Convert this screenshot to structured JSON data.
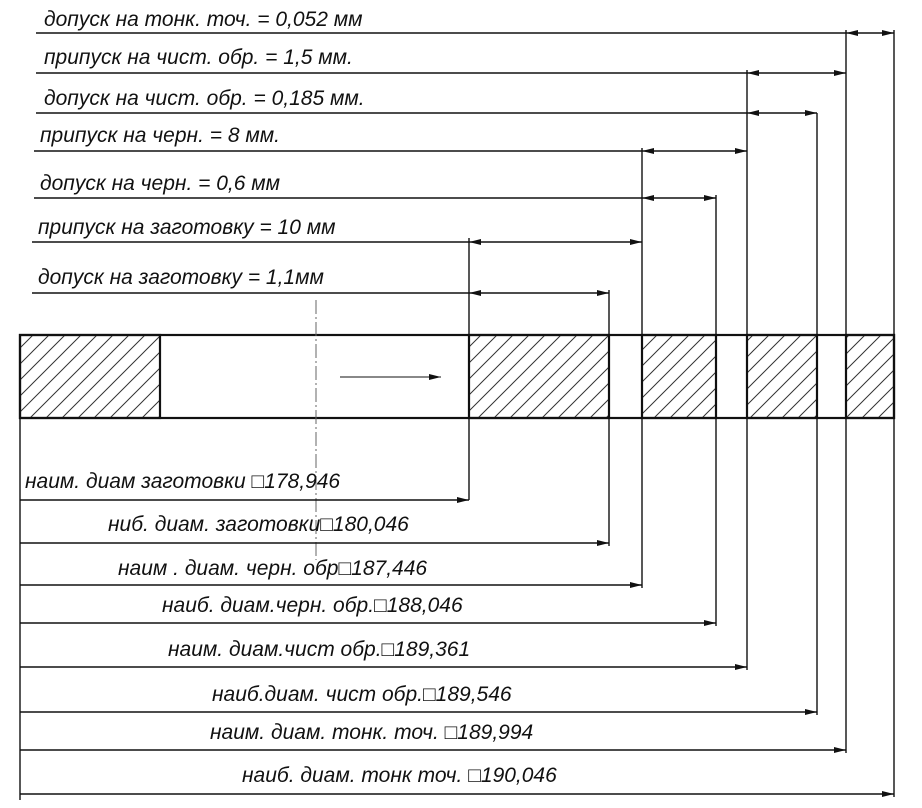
{
  "allowances": [
    {
      "id": "tol-fine-turn",
      "text": "допуск на тонк. точ. = 0,052 мм"
    },
    {
      "id": "allow-finish",
      "text": "припуск на чист. обр. = 1,5 мм."
    },
    {
      "id": "tol-finish",
      "text": "допуск на чист. обр. = 0,185 мм."
    },
    {
      "id": "allow-rough",
      "text": "припуск на черн. = 8 мм."
    },
    {
      "id": "tol-rough",
      "text": "допуск на черн. = 0,6 мм"
    },
    {
      "id": "allow-blank",
      "text": "припуск на заготовку = 10 мм"
    },
    {
      "id": "tol-blank",
      "text": "допуск на заготовку = 1,1мм"
    }
  ],
  "diameters": [
    {
      "id": "min-blank",
      "text": "наим. диам заготовки □178,946"
    },
    {
      "id": "max-blank",
      "text": "ниб. диам. заготовки□180,046"
    },
    {
      "id": "min-rough",
      "text": "наим . диам. черн. обр□187,446"
    },
    {
      "id": "max-rough",
      "text": "наиб. диам.черн. обр.□188,046"
    },
    {
      "id": "min-finish",
      "text": "наим. диам.чист  обр.□189,361"
    },
    {
      "id": "max-finish",
      "text": "наиб.диам. чист обр.□189,546"
    },
    {
      "id": "min-fine",
      "text": "наим. диам. тонк. точ. □189,994"
    },
    {
      "id": "max-fine",
      "text": "наиб. диам. тонк точ. □190,046"
    }
  ]
}
